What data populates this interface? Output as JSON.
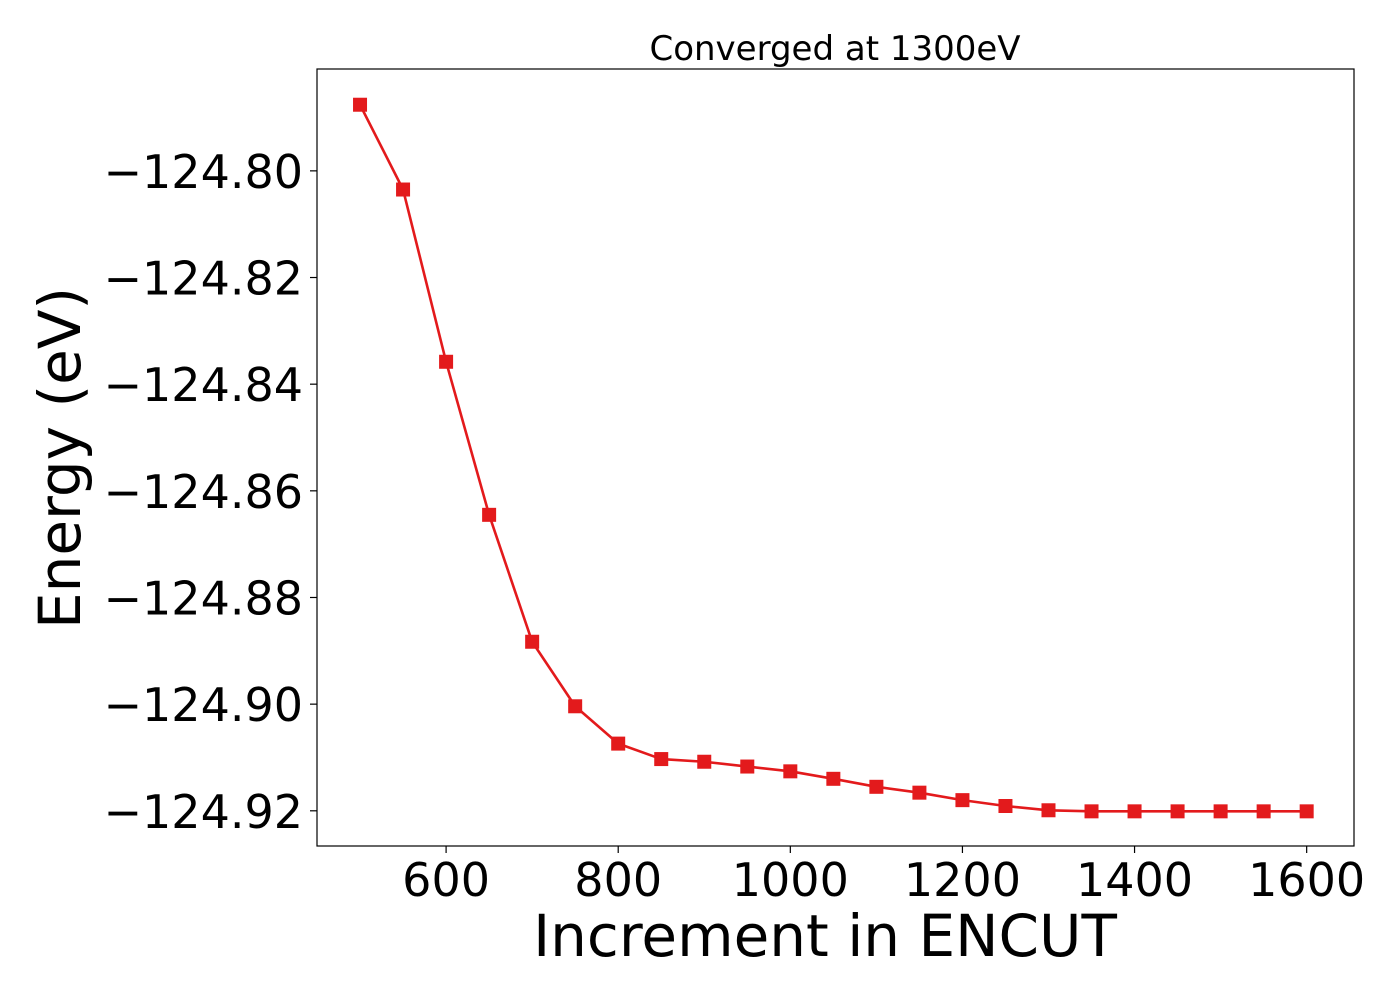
{
  "chart_data": {
    "type": "line",
    "title": "Converged at 1300eV",
    "xlabel": "Increment in ENCUT",
    "ylabel": "Energy (eV)",
    "xlim": [
      450,
      1655
    ],
    "ylim": [
      -124.9266,
      -124.7809
    ],
    "xticks": [
      600,
      800,
      1000,
      1200,
      1400,
      1600
    ],
    "yticks": [
      -124.8,
      -124.82,
      -124.84,
      -124.86,
      -124.88,
      -124.9,
      -124.92
    ],
    "xtick_labels": [
      "600",
      "800",
      "1000",
      "1200",
      "1400",
      "1600"
    ],
    "ytick_labels": [
      "−124.80",
      "−124.82",
      "−124.84",
      "−124.86",
      "−124.88",
      "−124.90",
      "−124.92"
    ],
    "grid": false,
    "legend": "none",
    "series": [
      {
        "color": "#e31a1c",
        "marker": "square",
        "x": [
          500,
          550,
          600,
          650,
          700,
          750,
          800,
          850,
          900,
          950,
          1000,
          1050,
          1100,
          1150,
          1200,
          1250,
          1300,
          1350,
          1400,
          1450,
          1500,
          1550,
          1600
        ],
        "y": [
          -124.7876,
          -124.8035,
          -124.8358,
          -124.8645,
          -124.8883,
          -124.9004,
          -124.9074,
          -124.9103,
          -124.9108,
          -124.9117,
          -124.9126,
          -124.914,
          -124.9155,
          -124.9166,
          -124.918,
          -124.9191,
          -124.9199,
          -124.9201,
          -124.9201,
          -124.9201,
          -124.9201,
          -124.9201,
          -124.9201
        ]
      }
    ]
  }
}
